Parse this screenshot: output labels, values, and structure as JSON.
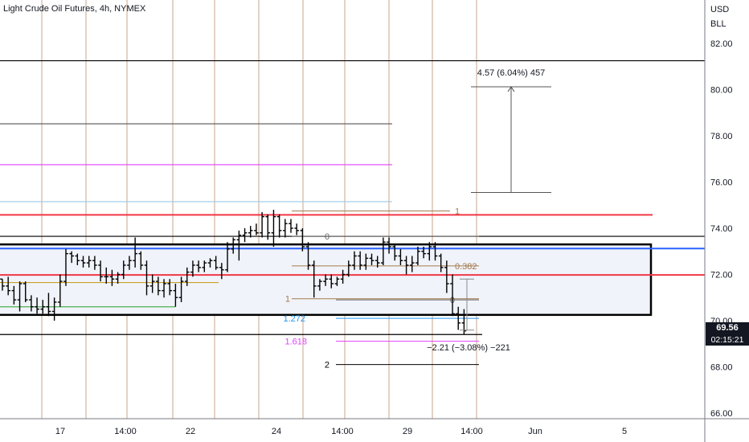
{
  "header": {
    "title": "Light Crude Oil Futures, 4h, NYMEX"
  },
  "price_scale": {
    "currency": "USD",
    "unit": "BLL"
  },
  "last_price": {
    "value": "69.56",
    "countdown": "02:15:21"
  },
  "colors": {
    "red": "#f23645",
    "blue": "#2962ff",
    "magenta": "#e040fb",
    "black": "#000000",
    "green": "#4caf50",
    "gold": "#c9a227",
    "light_blue": "#9ccbe8",
    "vline": "#c8a58c"
  },
  "chart_data": {
    "type": "ohlc",
    "title": "Light Crude Oil Futures, 4h, NYMEX",
    "ylabel": "USD BLL",
    "ylim": [
      65.5,
      83.5
    ],
    "y_ticks": [
      "82.00",
      "80.00",
      "78.00",
      "76.00",
      "74.00",
      "72.00",
      "70.00",
      "68.00",
      "66.00"
    ],
    "x_ticks": [
      "17",
      "14:00",
      "22",
      "24",
      "14:00",
      "29",
      "14:00",
      "Jun",
      "5"
    ],
    "grid": false,
    "bars": [
      [
        71.8,
        71.8,
        71.3,
        71.5
      ],
      [
        71.5,
        71.9,
        71.1,
        71.3
      ],
      [
        71.3,
        71.5,
        70.7,
        70.9
      ],
      [
        70.9,
        71.7,
        70.4,
        71.6
      ],
      [
        71.6,
        71.7,
        70.8,
        70.9
      ],
      [
        70.9,
        71.1,
        70.4,
        70.6
      ],
      [
        70.6,
        71.0,
        70.3,
        70.5
      ],
      [
        70.5,
        70.9,
        70.3,
        70.6
      ],
      [
        70.6,
        71.2,
        70.2,
        70.4
      ],
      [
        70.4,
        71.0,
        70.0,
        70.8
      ],
      [
        70.8,
        72.0,
        70.6,
        71.7
      ],
      [
        71.7,
        73.1,
        71.5,
        72.9
      ],
      [
        72.9,
        73.0,
        72.5,
        72.8
      ],
      [
        72.8,
        72.9,
        72.4,
        72.6
      ],
      [
        72.6,
        72.8,
        72.3,
        72.5
      ],
      [
        72.5,
        72.8,
        72.3,
        72.6
      ],
      [
        72.6,
        72.8,
        72.2,
        72.4
      ],
      [
        72.4,
        72.6,
        71.7,
        71.9
      ],
      [
        71.9,
        72.3,
        71.6,
        71.9
      ],
      [
        71.9,
        72.2,
        71.5,
        71.8
      ],
      [
        71.8,
        72.1,
        71.6,
        72.0
      ],
      [
        72.0,
        72.6,
        71.8,
        72.4
      ],
      [
        72.4,
        72.8,
        72.2,
        72.6
      ],
      [
        72.6,
        73.6,
        72.3,
        72.9
      ],
      [
        72.9,
        73.0,
        72.2,
        72.4
      ],
      [
        72.4,
        72.6,
        71.1,
        71.5
      ],
      [
        71.5,
        72.0,
        71.2,
        71.7
      ],
      [
        71.7,
        71.9,
        71.1,
        71.3
      ],
      [
        71.3,
        71.8,
        71.0,
        71.6
      ],
      [
        71.6,
        71.8,
        71.1,
        71.3
      ],
      [
        71.3,
        71.6,
        70.6,
        71.0
      ],
      [
        71.0,
        71.9,
        70.8,
        71.7
      ],
      [
        71.7,
        72.3,
        71.5,
        72.1
      ],
      [
        72.1,
        72.6,
        71.9,
        72.4
      ],
      [
        72.4,
        72.6,
        72.1,
        72.3
      ],
      [
        72.3,
        72.6,
        72.1,
        72.5
      ],
      [
        72.5,
        72.7,
        72.3,
        72.6
      ],
      [
        72.6,
        72.8,
        72.2,
        72.3
      ],
      [
        72.3,
        72.5,
        71.8,
        72.2
      ],
      [
        72.2,
        73.4,
        72.1,
        73.1
      ],
      [
        73.1,
        73.6,
        72.9,
        73.5
      ],
      [
        73.5,
        73.9,
        72.6,
        73.7
      ],
      [
        73.7,
        74.0,
        73.4,
        73.8
      ],
      [
        73.8,
        74.1,
        73.6,
        73.9
      ],
      [
        73.9,
        74.2,
        73.7,
        73.8
      ],
      [
        73.8,
        74.7,
        73.6,
        74.5
      ],
      [
        74.5,
        74.6,
        73.5,
        73.8
      ],
      [
        73.8,
        74.8,
        73.2,
        74.5
      ],
      [
        74.5,
        74.6,
        73.6,
        73.9
      ],
      [
        73.9,
        74.4,
        73.6,
        74.2
      ],
      [
        74.2,
        74.4,
        73.8,
        74.0
      ],
      [
        74.0,
        74.2,
        73.7,
        73.9
      ],
      [
        73.9,
        74.0,
        73.0,
        73.2
      ],
      [
        73.2,
        73.4,
        72.2,
        72.4
      ],
      [
        72.4,
        72.6,
        71.0,
        71.5
      ],
      [
        71.5,
        71.8,
        71.3,
        71.7
      ],
      [
        71.7,
        72.0,
        71.5,
        71.8
      ],
      [
        71.8,
        72.0,
        71.4,
        71.6
      ],
      [
        71.6,
        71.9,
        71.5,
        71.8
      ],
      [
        71.8,
        72.2,
        71.6,
        72.0
      ],
      [
        72.0,
        72.6,
        71.9,
        72.4
      ],
      [
        72.4,
        73.0,
        72.2,
        72.8
      ],
      [
        72.8,
        73.0,
        72.2,
        72.4
      ],
      [
        72.4,
        72.9,
        72.2,
        72.7
      ],
      [
        72.7,
        72.9,
        72.4,
        72.6
      ],
      [
        72.6,
        72.8,
        72.3,
        72.5
      ],
      [
        72.5,
        73.6,
        72.4,
        73.4
      ],
      [
        73.4,
        73.6,
        72.9,
        73.2
      ],
      [
        73.2,
        73.3,
        72.6,
        72.8
      ],
      [
        72.8,
        73.1,
        72.4,
        72.6
      ],
      [
        72.6,
        72.8,
        72.0,
        72.4
      ],
      [
        72.4,
        72.8,
        72.1,
        72.5
      ],
      [
        72.5,
        73.2,
        72.4,
        73.0
      ],
      [
        73.0,
        73.2,
        72.7,
        72.9
      ],
      [
        72.9,
        73.4,
        72.6,
        73.2
      ],
      [
        73.2,
        73.4,
        72.6,
        72.8
      ],
      [
        72.8,
        72.9,
        72.1,
        72.3
      ],
      [
        72.3,
        72.6,
        71.2,
        71.6
      ],
      [
        71.6,
        72.0,
        70.2,
        70.3
      ],
      [
        70.3,
        70.6,
        69.6,
        69.9
      ],
      [
        69.9,
        70.5,
        69.4,
        69.56
      ]
    ],
    "horizontal_levels": [
      {
        "price": 81.25,
        "color": "#000000",
        "extent": "full"
      },
      {
        "price": 78.52,
        "color": "#555555",
        "extent": "partial"
      },
      {
        "price": 76.75,
        "color": "#e040fb",
        "extent": "partial"
      },
      {
        "price": 75.15,
        "color": "#9ccbe8",
        "extent": "partial"
      },
      {
        "price": 74.58,
        "color": "#f23645",
        "extent": "partial"
      },
      {
        "price": 73.65,
        "color": "#000000",
        "extent": "full"
      },
      {
        "price": 73.12,
        "color": "#2962ff",
        "extent": "full"
      },
      {
        "price": 71.98,
        "color": "#f23645",
        "extent": "full"
      },
      {
        "price": 71.65,
        "color": "#c9a227",
        "extent": "partial"
      },
      {
        "price": 70.6,
        "color": "#4caf50",
        "extent": "partial"
      },
      {
        "price": 69.4,
        "color": "#000000",
        "extent": "partial"
      }
    ],
    "range_box": {
      "top": 73.3,
      "bottom": 70.25
    },
    "fib_levels": [
      {
        "label": "1",
        "price": 74.75,
        "color": "#a47a4d"
      },
      {
        "label": "0",
        "price": 73.65,
        "color": "#666666"
      },
      {
        "label": "0.382",
        "price": 72.37,
        "color": "#a47a4d"
      },
      {
        "label": "1",
        "price": 70.95,
        "color": "#a47a4d"
      },
      {
        "label": "0",
        "price": 70.9,
        "color": "#666666"
      },
      {
        "label": "1.272",
        "price": 70.1,
        "color": "#2196f3"
      },
      {
        "label": "1.618",
        "price": 69.11,
        "color": "#e040fb"
      },
      {
        "label": "2",
        "price": 68.1,
        "color": "#000000"
      }
    ],
    "measures": [
      {
        "label": "4.57 (6.04%) 457",
        "from": 75.55,
        "to": 80.12
      },
      {
        "label": "−2.21 (−3.08%) −221",
        "from": 71.8,
        "to": 69.59
      }
    ]
  }
}
